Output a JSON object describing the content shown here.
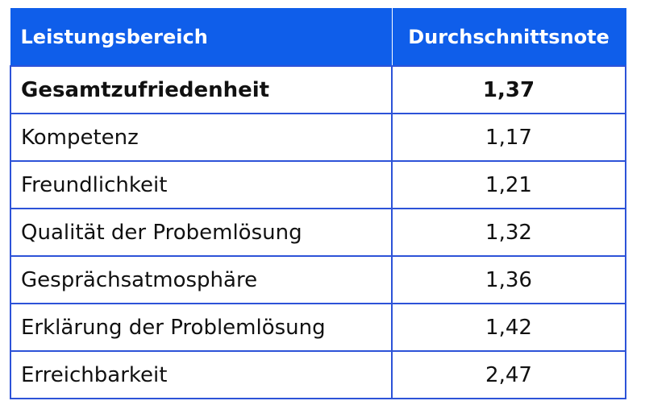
{
  "table": {
    "headers": [
      "Leistungsbereich",
      "Durchschnittsnote"
    ],
    "rows": [
      {
        "label": "Gesamtzufriedenheit",
        "value": "1,37",
        "bold": true
      },
      {
        "label": "Kompetenz",
        "value": "1,17"
      },
      {
        "label": "Freundlichkeit",
        "value": "1,21"
      },
      {
        "label": "Qualität der Probemlösung",
        "value": "1,32"
      },
      {
        "label": "Gesprächsatmosphäre",
        "value": "1,36"
      },
      {
        "label": "Erklärung der Problemlösung",
        "value": "1,42"
      },
      {
        "label": "Erreichbarkeit",
        "value": "2,47"
      }
    ]
  },
  "colors": {
    "header_bg": "#0f5eea",
    "border": "#2d53d8"
  }
}
